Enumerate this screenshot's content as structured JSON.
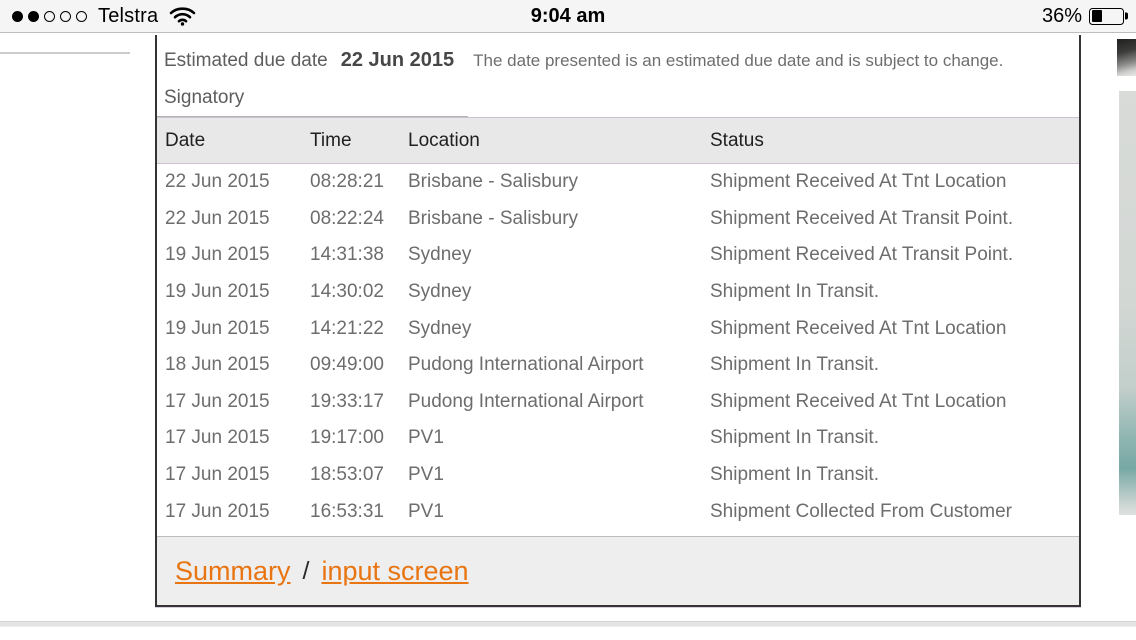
{
  "status_bar": {
    "carrier": "Telstra",
    "time": "9:04 am",
    "battery_percent": "36%",
    "battery_fill_percent": 36,
    "signal_filled": 2,
    "signal_total": 5
  },
  "tracking": {
    "due_date_label": "Estimated due date",
    "due_date": "22 Jun 2015",
    "due_date_note": "The date presented is an estimated due date and is subject to change.",
    "signatory_label": "Signatory",
    "columns": [
      "Date",
      "Time",
      "Location",
      "Status"
    ],
    "rows": [
      {
        "date": "22 Jun 2015",
        "time": "08:28:21",
        "location": "Brisbane - Salisbury",
        "status": "Shipment Received At Tnt Location"
      },
      {
        "date": "22 Jun 2015",
        "time": "08:22:24",
        "location": "Brisbane - Salisbury",
        "status": "Shipment Received At Transit Point."
      },
      {
        "date": "19 Jun 2015",
        "time": "14:31:38",
        "location": "Sydney",
        "status": "Shipment Received At Transit Point."
      },
      {
        "date": "19 Jun 2015",
        "time": "14:30:02",
        "location": "Sydney",
        "status": "Shipment In Transit."
      },
      {
        "date": "19 Jun 2015",
        "time": "14:21:22",
        "location": "Sydney",
        "status": "Shipment Received At Tnt Location"
      },
      {
        "date": "18 Jun 2015",
        "time": "09:49:00",
        "location": "Pudong International Airport",
        "status": "Shipment In Transit."
      },
      {
        "date": "17 Jun 2015",
        "time": "19:33:17",
        "location": "Pudong International Airport",
        "status": "Shipment Received At Tnt Location"
      },
      {
        "date": "17 Jun 2015",
        "time": "19:17:00",
        "location": "PV1",
        "status": "Shipment In Transit."
      },
      {
        "date": "17 Jun 2015",
        "time": "18:53:07",
        "location": "PV1",
        "status": "Shipment In Transit."
      },
      {
        "date": "17 Jun 2015",
        "time": "16:53:31",
        "location": "PV1",
        "status": "Shipment Collected From Customer"
      }
    ],
    "footer": {
      "summary_label": "Summary",
      "separator": "/",
      "input_screen_label": "input screen"
    }
  },
  "colors": {
    "link_orange": "#e87511",
    "header_band_border": "#cdc0d2",
    "header_bg": "#e9e8e9",
    "table_border": "#343434",
    "body_text": "#6d6d6d"
  }
}
